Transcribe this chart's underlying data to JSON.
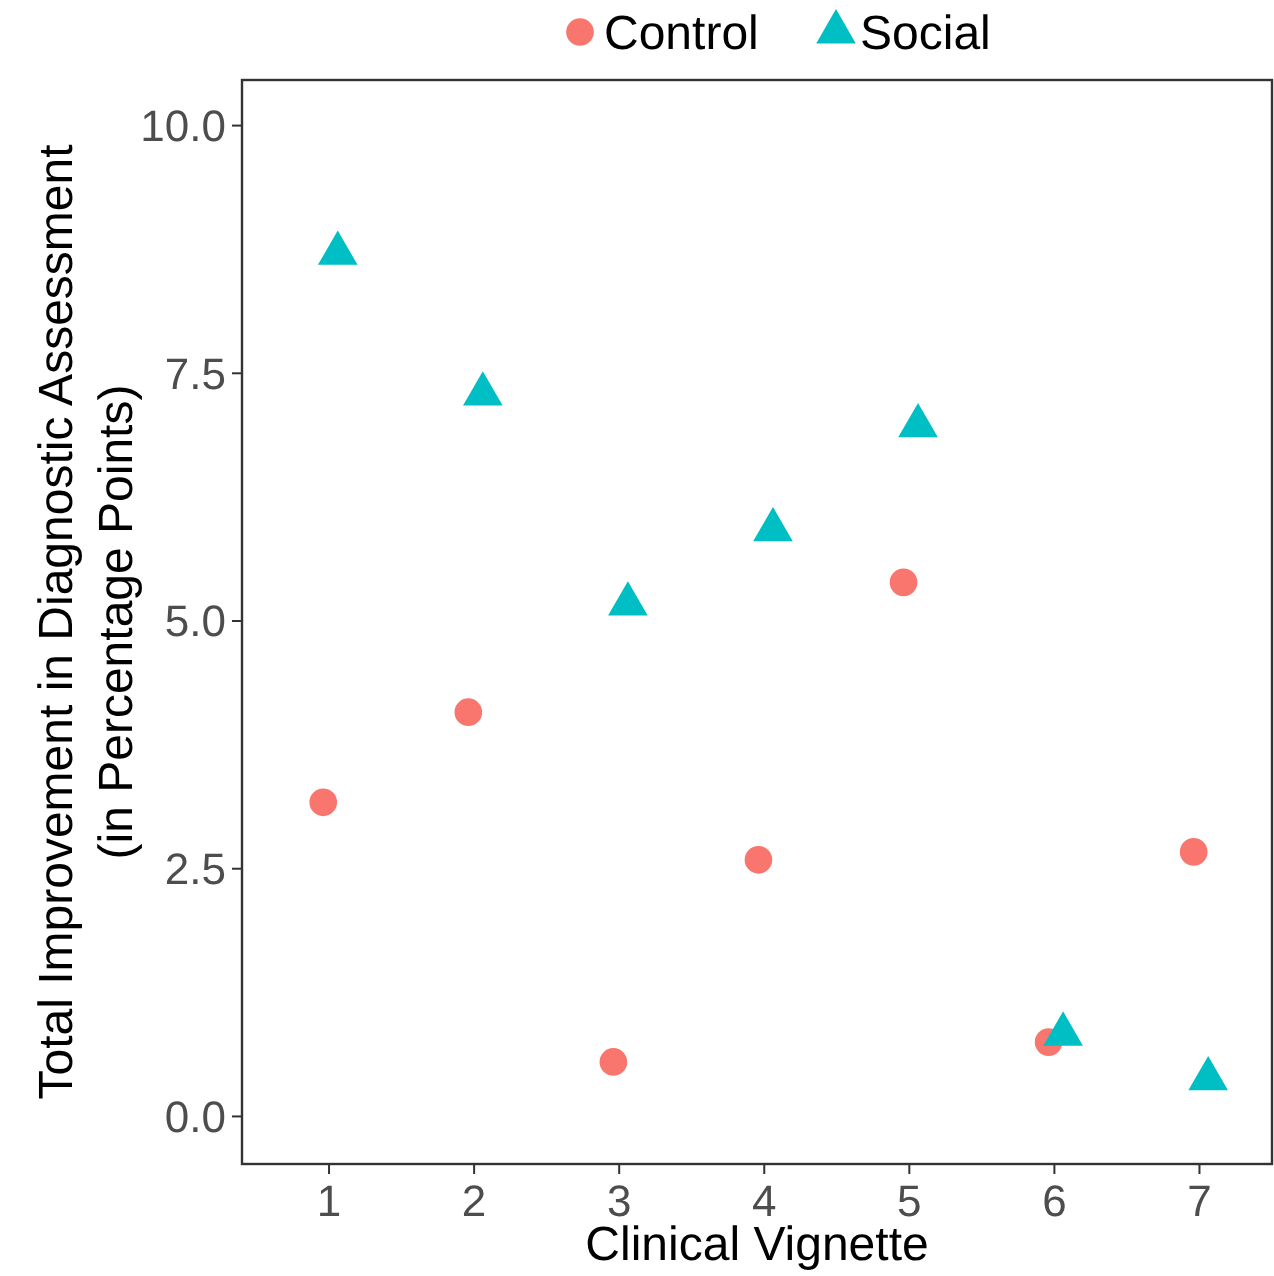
{
  "chart_data": {
    "type": "scatter",
    "xlabel": "Clinical Vignette",
    "ylabel": "Total Improvement in Diagnostic Assessment\n(in Percentage Points)",
    "xlim": [
      0.4,
      7.5
    ],
    "xticks": [
      1,
      2,
      3,
      4,
      5,
      6,
      7
    ],
    "ylim": [
      -0.48,
      10.46
    ],
    "yticks": [
      {
        "value": 0,
        "label": "0.0"
      },
      2.5,
      {
        "value": 5,
        "label": "5.0"
      },
      7.5,
      {
        "value": 10,
        "label": "10.0"
      }
    ],
    "grid": false,
    "legend": "top",
    "series": [
      {
        "name": "Control",
        "color": "#f8766d",
        "marker": "circle",
        "x": [
          0.96,
          1.96,
          2.96,
          3.96,
          4.96,
          5.96,
          6.96
        ],
        "values": [
          3.17,
          4.08,
          0.55,
          2.59,
          5.39,
          0.75,
          2.67
        ]
      },
      {
        "name": "Social",
        "color": "#00bfc4",
        "marker": "triangle",
        "x": [
          1.06,
          2.06,
          3.06,
          4.06,
          5.06,
          6.06,
          7.06
        ],
        "values": [
          8.71,
          7.29,
          5.17,
          5.92,
          6.97,
          0.83,
          0.38
        ]
      }
    ]
  }
}
